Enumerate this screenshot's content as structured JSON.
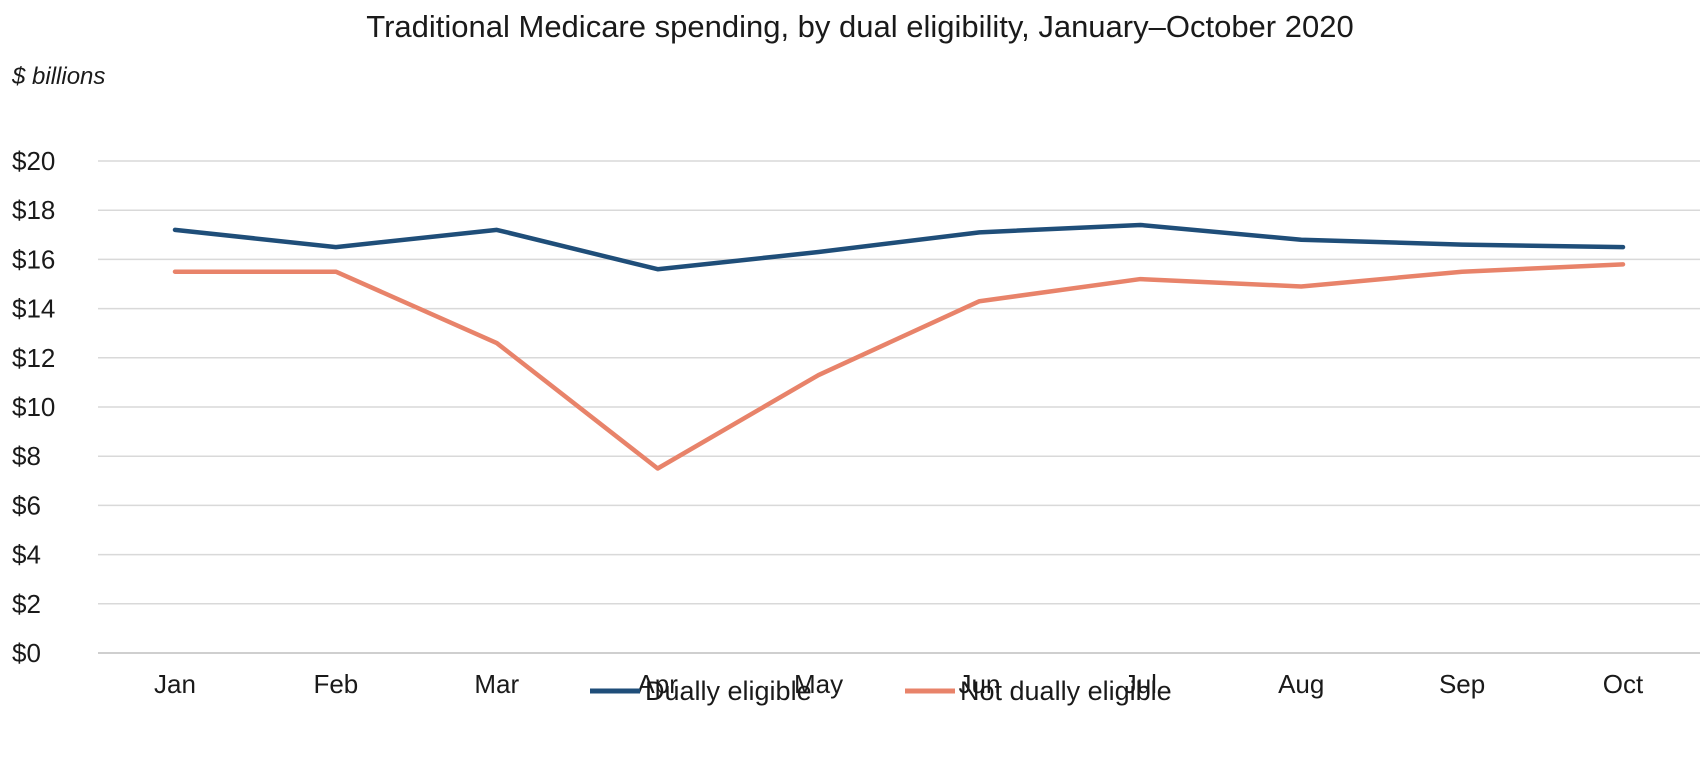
{
  "chart_data": {
    "type": "line",
    "title": "Traditional Medicare spending, by dual eligibility, January–October 2020",
    "unit_label": "$ billions",
    "ylabel": "",
    "xlabel": "",
    "categories": [
      "Jan",
      "Feb",
      "Mar",
      "Apr",
      "May",
      "Jun",
      "Jul",
      "Aug",
      "Sep",
      "Oct"
    ],
    "y_ticks": [
      "$0",
      "$2",
      "$4",
      "$6",
      "$8",
      "$10",
      "$12",
      "$14",
      "$16",
      "$18",
      "$20"
    ],
    "ylim": [
      0,
      20
    ],
    "grid": "horizontal",
    "legend_position": "bottom",
    "series": [
      {
        "name": "Dually eligible",
        "color": "#1f4e79",
        "values": [
          17.2,
          16.5,
          17.2,
          15.6,
          16.3,
          17.1,
          17.4,
          16.8,
          16.6,
          16.5
        ]
      },
      {
        "name": "Not dually eligible",
        "color": "#e8836a",
        "values": [
          15.5,
          15.5,
          12.6,
          7.5,
          11.3,
          14.3,
          15.2,
          14.9,
          15.5,
          15.8
        ]
      }
    ]
  }
}
